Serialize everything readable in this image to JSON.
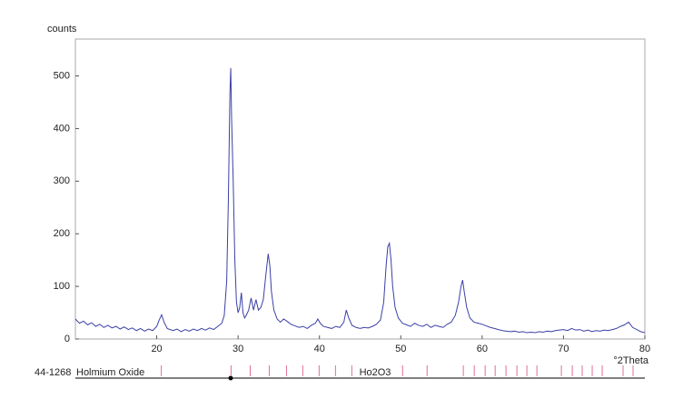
{
  "chart_data": {
    "type": "line",
    "y_label": "counts",
    "x_label": "°2Theta",
    "color": "#3b40a6",
    "xlim": [
      10,
      80
    ],
    "ylim": [
      0,
      570
    ],
    "xticks": [
      20,
      30,
      40,
      50,
      60,
      70,
      80
    ],
    "yticks": [
      0,
      100,
      200,
      300,
      400,
      500
    ],
    "x": [
      10,
      10.5,
      11,
      11.5,
      12,
      12.5,
      13,
      13.5,
      14,
      14.5,
      15,
      15.5,
      16,
      16.5,
      17,
      17.5,
      18,
      18.5,
      19,
      19.5,
      20,
      20.3,
      20.6,
      20.9,
      21.3,
      22,
      22.5,
      23,
      23.5,
      24,
      24.5,
      25,
      25.5,
      26,
      26.5,
      27,
      27.5,
      28,
      28.3,
      28.6,
      28.8,
      29,
      29.1,
      29.2,
      29.4,
      29.6,
      29.8,
      30,
      30.2,
      30.4,
      30.6,
      30.8,
      31,
      31.3,
      31.6,
      31.9,
      32.2,
      32.5,
      32.8,
      33.1,
      33.4,
      33.7,
      33.9,
      34.1,
      34.4,
      34.8,
      35.2,
      35.6,
      36,
      36.5,
      37,
      37.5,
      38,
      38.5,
      39,
      39.5,
      39.8,
      40.1,
      40.5,
      41,
      41.5,
      42,
      42.5,
      43,
      43.3,
      43.6,
      44,
      44.5,
      45,
      45.5,
      46,
      46.5,
      47,
      47.5,
      47.9,
      48.2,
      48.4,
      48.6,
      48.8,
      49,
      49.3,
      49.7,
      50.2,
      50.7,
      51.2,
      51.7,
      52.2,
      52.7,
      53.2,
      53.7,
      54.2,
      54.7,
      55.2,
      55.7,
      56.2,
      56.7,
      57.1,
      57.4,
      57.6,
      57.8,
      58.1,
      58.5,
      59,
      59.5,
      60,
      60.5,
      61,
      61.5,
      62,
      62.5,
      63,
      63.5,
      64,
      64.5,
      65,
      65.5,
      66,
      66.5,
      67,
      67.5,
      68,
      68.5,
      69,
      69.5,
      70,
      70.5,
      71,
      71.5,
      72,
      72.5,
      73,
      73.5,
      74,
      74.5,
      75,
      75.5,
      76,
      76.5,
      77,
      77.5,
      78,
      78.5,
      79,
      79.5,
      80
    ],
    "values": [
      38,
      30,
      34,
      27,
      31,
      24,
      28,
      22,
      26,
      21,
      24,
      19,
      23,
      18,
      21,
      16,
      20,
      15,
      19,
      16,
      24,
      36,
      46,
      32,
      20,
      16,
      19,
      14,
      18,
      15,
      19,
      16,
      20,
      17,
      21,
      18,
      24,
      30,
      45,
      110,
      260,
      470,
      515,
      420,
      300,
      150,
      70,
      50,
      60,
      88,
      50,
      40,
      45,
      55,
      78,
      55,
      75,
      55,
      60,
      75,
      120,
      162,
      140,
      90,
      55,
      38,
      32,
      38,
      34,
      28,
      25,
      22,
      24,
      20,
      26,
      30,
      38,
      30,
      24,
      22,
      20,
      24,
      22,
      32,
      55,
      40,
      26,
      22,
      20,
      22,
      21,
      24,
      28,
      36,
      70,
      140,
      175,
      182,
      150,
      100,
      60,
      40,
      30,
      27,
      24,
      30,
      26,
      24,
      28,
      22,
      26,
      24,
      22,
      28,
      32,
      45,
      70,
      100,
      112,
      90,
      60,
      40,
      32,
      30,
      28,
      25,
      22,
      20,
      18,
      16,
      15,
      14,
      15,
      13,
      14,
      12,
      13,
      12,
      14,
      13,
      15,
      14,
      16,
      17,
      18,
      16,
      20,
      17,
      18,
      15,
      17,
      14,
      16,
      15,
      17,
      16,
      18,
      20,
      24,
      27,
      32,
      22,
      18,
      14,
      12
    ],
    "reference": {
      "code": "44-1268",
      "name": "Holmium Oxide",
      "formula": "Ho2O3",
      "color": "#e0709a",
      "positions": [
        20.56,
        29.14,
        31.49,
        33.83,
        35.95,
        37.95,
        39.96,
        41.97,
        43.98,
        50.22,
        53.23,
        57.69,
        59.03,
        60.37,
        61.6,
        62.93,
        64.27,
        65.5,
        66.73,
        69.74,
        71.08,
        72.3,
        73.53,
        74.76,
        77.32,
        78.55
      ]
    }
  }
}
